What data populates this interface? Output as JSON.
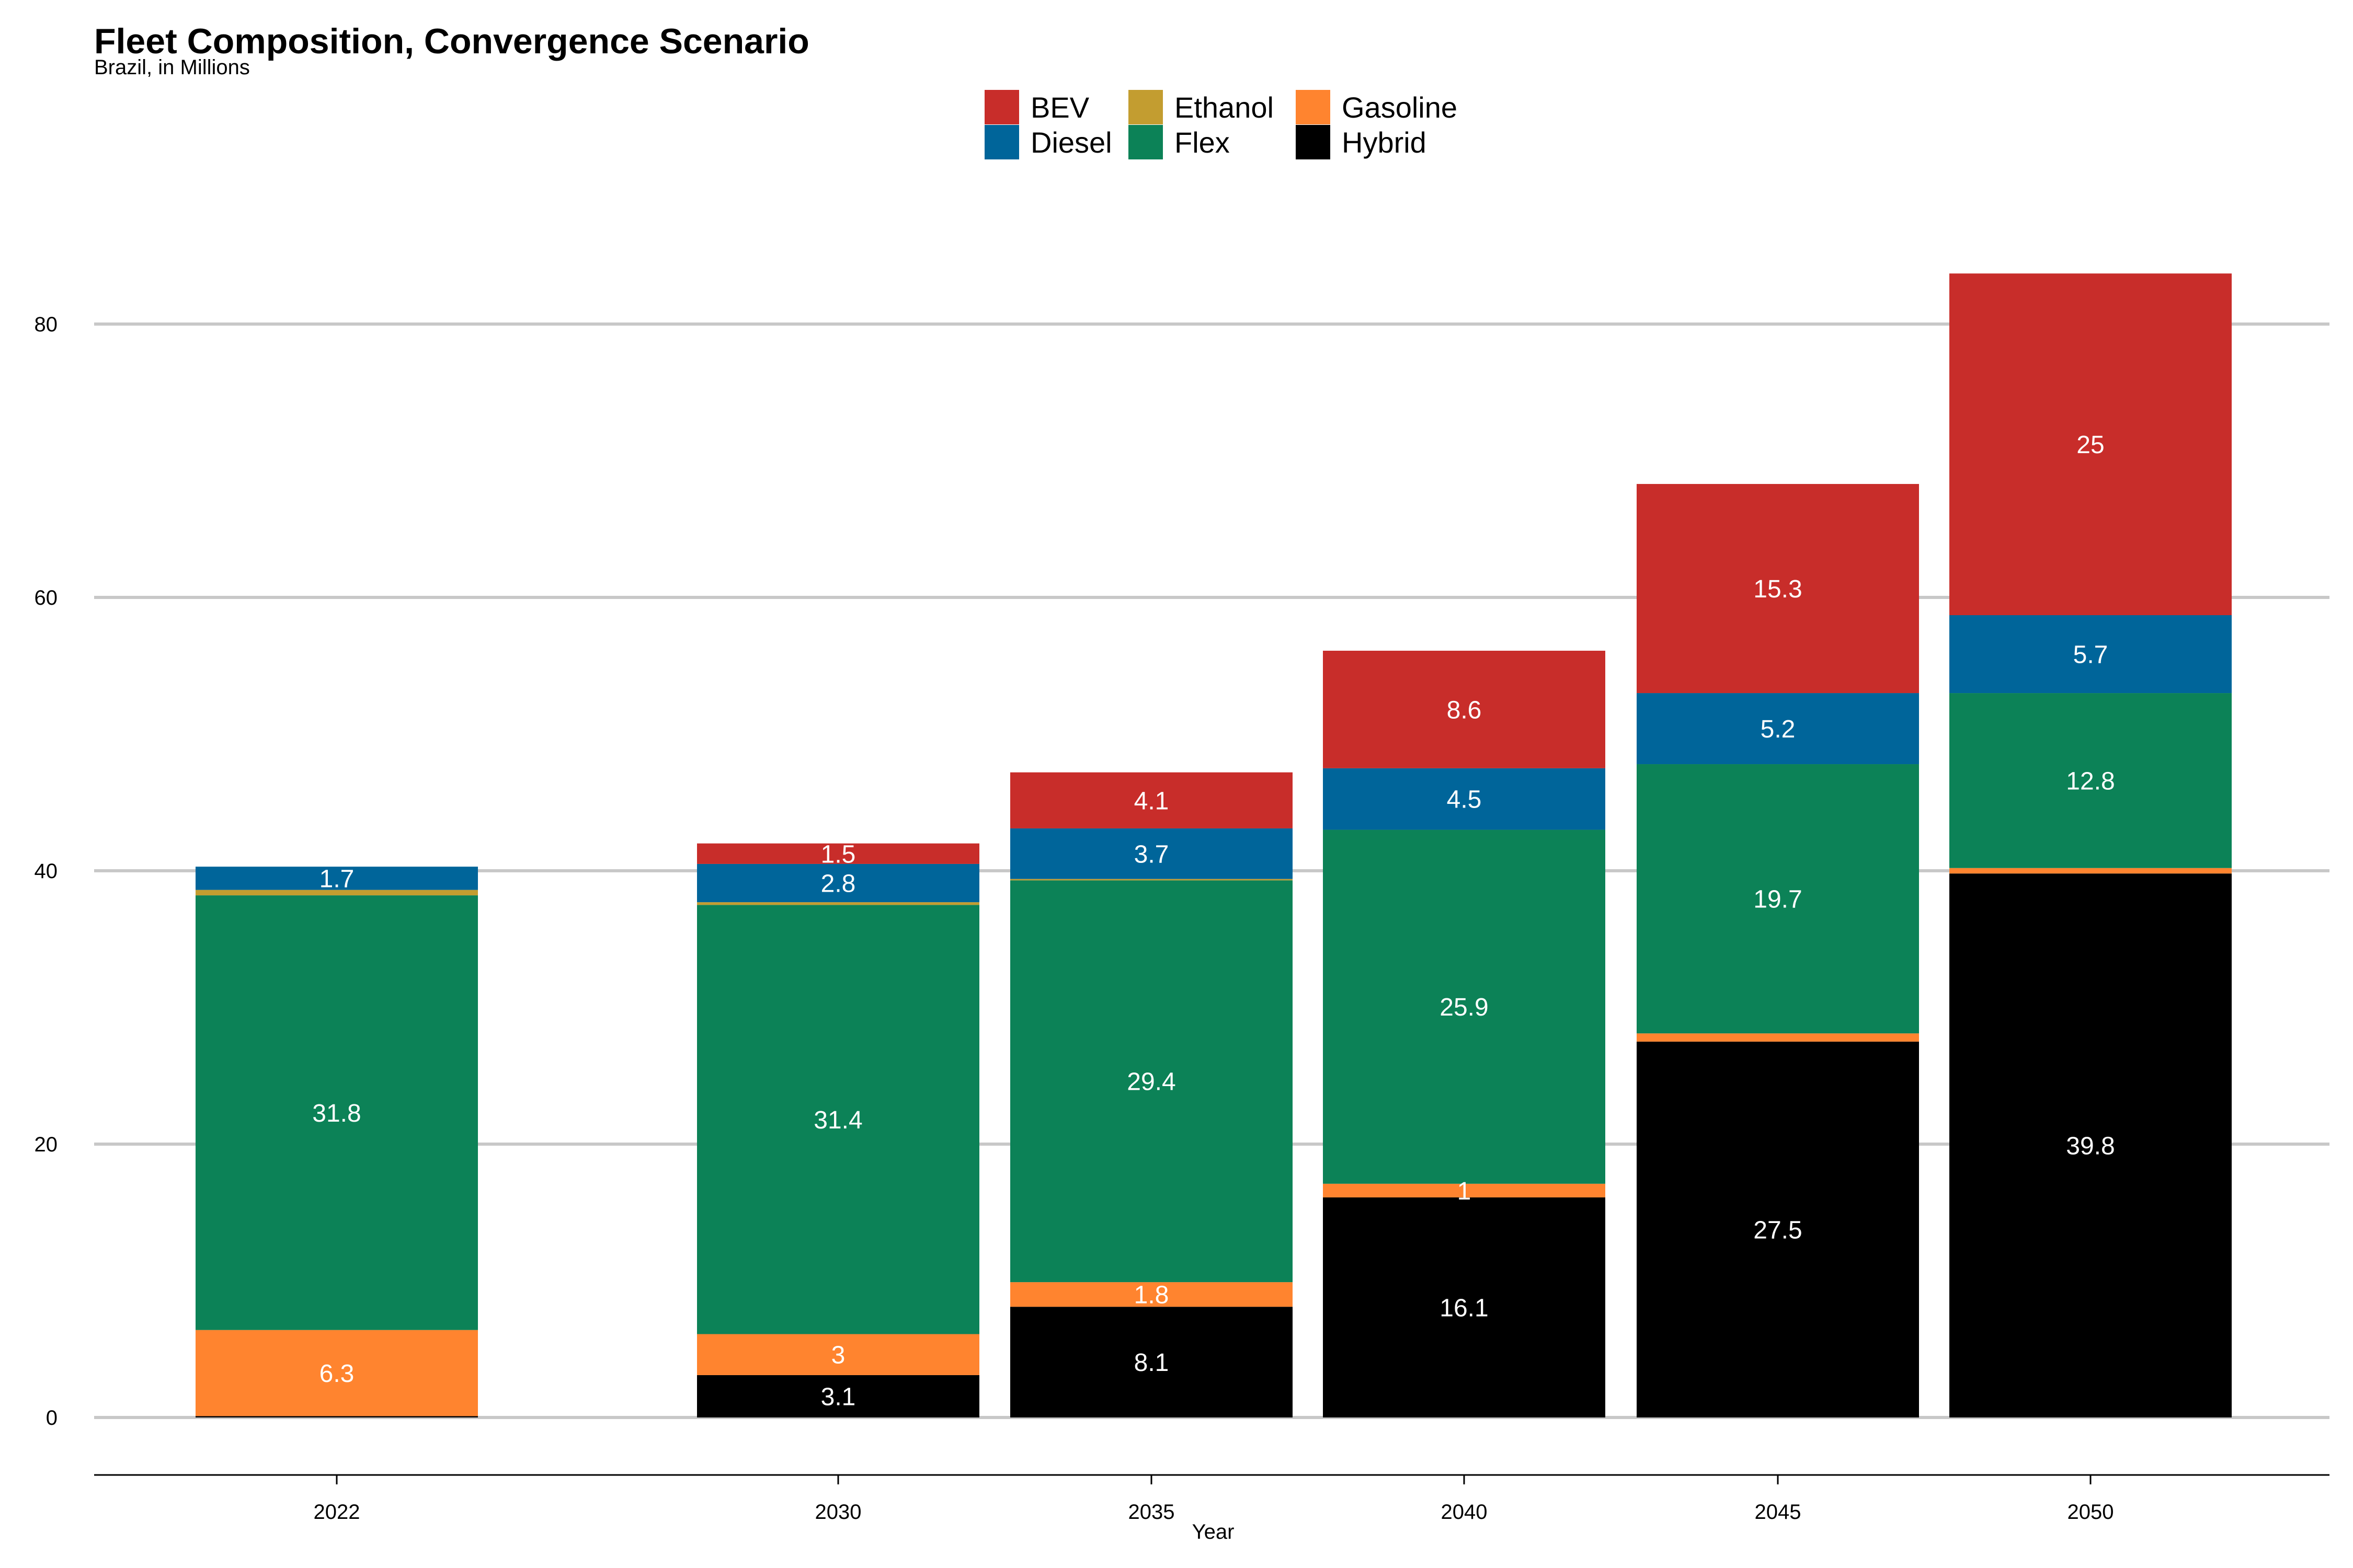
{
  "chart_data": {
    "type": "bar",
    "stacked": true,
    "title": "Fleet Composition, Convergence Scenario",
    "subtitle": "Brazil, in Millions",
    "xlabel": "Year",
    "ylabel": "",
    "ylim": [
      0,
      85
    ],
    "yticks": [
      0,
      20,
      40,
      60,
      80
    ],
    "grid": "horizontal",
    "legend_position": "top",
    "categories": [
      "2022",
      "2030",
      "2035",
      "2040",
      "2045",
      "2050"
    ],
    "legend_order": [
      "BEV",
      "Diesel",
      "Ethanol",
      "Flex",
      "Gasoline",
      "Hybrid"
    ],
    "stack_order": [
      "Hybrid",
      "Gasoline",
      "Flex",
      "Ethanol",
      "Diesel",
      "BEV"
    ],
    "series": [
      {
        "name": "Hybrid",
        "color": "#000000",
        "values": [
          0.1,
          3.1,
          8.1,
          16.1,
          27.5,
          39.8
        ],
        "labels": [
          "",
          "3.1",
          "8.1",
          "16.1",
          "27.5",
          "39.8"
        ]
      },
      {
        "name": "Gasoline",
        "color": "#FF842F",
        "values": [
          6.3,
          3.0,
          1.8,
          1.0,
          0.6,
          0.4
        ],
        "labels": [
          "6.3",
          "3",
          "1.8",
          "1",
          "",
          ""
        ]
      },
      {
        "name": "Flex",
        "color": "#0C8257",
        "values": [
          31.8,
          31.4,
          29.4,
          25.9,
          19.7,
          12.8
        ],
        "labels": [
          "31.8",
          "31.4",
          "29.4",
          "25.9",
          "19.7",
          "12.8"
        ]
      },
      {
        "name": "Ethanol",
        "color": "#C39D30",
        "values": [
          0.4,
          0.2,
          0.1,
          0.0,
          0.0,
          0.0
        ],
        "labels": [
          "",
          "",
          "",
          "",
          "",
          ""
        ]
      },
      {
        "name": "Diesel",
        "color": "#00659A",
        "values": [
          1.7,
          2.8,
          3.7,
          4.5,
          5.2,
          5.7
        ],
        "labels": [
          "1.7",
          "2.8",
          "3.7",
          "4.5",
          "5.2",
          "5.7"
        ]
      },
      {
        "name": "BEV",
        "color": "#C82D2A",
        "values": [
          0.0,
          1.5,
          4.1,
          8.6,
          15.3,
          25.0
        ],
        "labels": [
          "",
          "1.5",
          "4.1",
          "8.6",
          "15.3",
          "25"
        ]
      }
    ]
  }
}
